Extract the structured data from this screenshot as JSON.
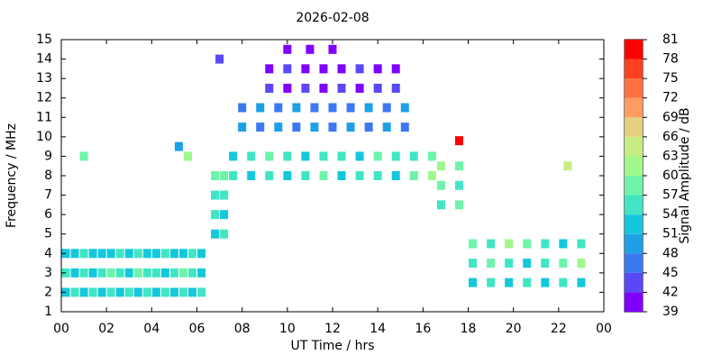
{
  "chart_data": {
    "type": "scatter",
    "title": "2026-02-08",
    "x_label": "UT Time / hrs",
    "y_label": "Frequency / MHz",
    "colorbar_label": "Signal Amplitude / dB",
    "xlim": [
      0,
      24
    ],
    "xticks": [
      {
        "value": 0,
        "label": "00"
      },
      {
        "value": 2,
        "label": "02"
      },
      {
        "value": 4,
        "label": "04"
      },
      {
        "value": 6,
        "label": "06"
      },
      {
        "value": 8,
        "label": "08"
      },
      10,
      12,
      14,
      16,
      18,
      20,
      22,
      {
        "value": 24,
        "label": "00"
      }
    ],
    "ylim": [
      1,
      15
    ],
    "yticks": [
      1,
      2,
      3,
      4,
      5,
      6,
      7,
      8,
      9,
      10,
      11,
      12,
      13,
      14,
      15
    ],
    "grid": false,
    "colorbar_levels": [
      39,
      42,
      45,
      48,
      51,
      54,
      57,
      60,
      63,
      66,
      69,
      72,
      75,
      78,
      81
    ],
    "colorbar_colors": [
      "#8000ff",
      "#5a48f8",
      "#3c78f0",
      "#1ea0e6",
      "#14c8dc",
      "#40e6c4",
      "#6ef4aa",
      "#a0f88c",
      "#c8ec84",
      "#e6d080",
      "#ff9c60",
      "#ff7040",
      "#ff4020",
      "#ff0000"
    ],
    "x": [
      0.2,
      0.2,
      0.2,
      0.6,
      0.6,
      0.6,
      1.0,
      1.0,
      1.0,
      1.4,
      1.4,
      1.4,
      1.8,
      1.8,
      1.8,
      2.2,
      2.2,
      2.2,
      2.6,
      2.6,
      2.6,
      3.0,
      3.0,
      3.0,
      3.4,
      3.4,
      3.4,
      3.8,
      3.8,
      3.8,
      4.2,
      4.2,
      4.2,
      4.6,
      4.6,
      4.6,
      5.0,
      5.0,
      5.0,
      5.4,
      5.4,
      5.4,
      5.8,
      5.8,
      5.8,
      6.2,
      6.2,
      6.2,
      6.8,
      6.8,
      6.8,
      6.8,
      7.2,
      7.2,
      7.2,
      7.2,
      7.6,
      7.6,
      8.4,
      8.4,
      9.2,
      9.2,
      10.0,
      10.0,
      10.8,
      10.8,
      11.6,
      11.6,
      12.4,
      12.4,
      13.2,
      13.2,
      14.0,
      14.0,
      14.8,
      14.8,
      15.6,
      15.6,
      16.4,
      16.4,
      8.0,
      8.0,
      8.8,
      8.8,
      9.6,
      9.6,
      10.4,
      10.4,
      11.2,
      11.2,
      12.0,
      12.0,
      12.8,
      12.8,
      13.6,
      13.6,
      14.4,
      14.4,
      15.2,
      15.2,
      9.2,
      9.2,
      10.0,
      10.0,
      10.8,
      10.8,
      11.6,
      11.6,
      12.4,
      12.4,
      13.2,
      13.2,
      14.0,
      14.0,
      14.8,
      14.8,
      10.0,
      11.0,
      12.0,
      16.8,
      16.8,
      16.8,
      17.6,
      17.6,
      17.6,
      18.2,
      18.2,
      18.2,
      19.0,
      19.0,
      19.0,
      19.8,
      19.8,
      19.8,
      20.6,
      20.6,
      20.6,
      21.4,
      21.4,
      21.4,
      22.2,
      22.2,
      22.2,
      23.0,
      23.0,
      23.0,
      5.6,
      5.2,
      7.0,
      22.4,
      1.0,
      17.6
    ],
    "values": [
      2,
      3,
      4,
      2,
      3,
      4,
      2,
      3,
      4,
      2,
      3,
      4,
      2,
      3,
      4,
      2,
      3,
      4,
      2,
      3,
      4,
      2,
      3,
      4,
      2,
      3,
      4,
      2,
      3,
      4,
      2,
      3,
      4,
      2,
      3,
      4,
      2,
      3,
      4,
      2,
      3,
      4,
      2,
      3,
      4,
      2,
      3,
      4,
      5,
      6,
      7,
      8,
      5,
      6,
      7,
      8,
      8,
      9,
      8,
      9,
      8,
      9,
      8,
      9,
      8,
      9,
      8,
      9,
      8,
      9,
      8,
      9,
      8,
      9,
      8,
      9,
      8,
      9,
      8,
      9,
      10.5,
      11.5,
      10.5,
      11.5,
      10.5,
      11.5,
      10.5,
      11.5,
      10.5,
      11.5,
      10.5,
      11.5,
      10.5,
      11.5,
      10.5,
      11.5,
      10.5,
      11.5,
      10.5,
      11.5,
      12.5,
      13.5,
      12.5,
      13.5,
      12.5,
      13.5,
      12.5,
      13.5,
      12.5,
      13.5,
      12.5,
      13.5,
      12.5,
      13.5,
      12.5,
      13.5,
      14.5,
      14.5,
      14.5,
      6.5,
      7.5,
      8.5,
      6.5,
      7.5,
      8.5,
      2.5,
      3.5,
      4.5,
      2.5,
      3.5,
      4.5,
      2.5,
      3.5,
      4.5,
      2.5,
      3.5,
      4.5,
      2.5,
      3.5,
      4.5,
      2.5,
      3.5,
      4.5,
      2.5,
      3.5,
      4.5,
      9,
      9.5,
      14,
      8.5,
      9,
      9.8
    ],
    "amplitude": [
      51,
      54,
      51,
      54,
      51,
      51,
      51,
      54,
      54,
      54,
      51,
      51,
      51,
      54,
      51,
      54,
      57,
      51,
      51,
      54,
      54,
      54,
      51,
      51,
      51,
      57,
      54,
      54,
      54,
      51,
      51,
      54,
      51,
      54,
      51,
      54,
      51,
      54,
      51,
      54,
      57,
      51,
      51,
      54,
      54,
      54,
      51,
      51,
      51,
      54,
      54,
      57,
      54,
      51,
      54,
      57,
      54,
      51,
      51,
      54,
      54,
      57,
      51,
      54,
      54,
      51,
      57,
      54,
      51,
      54,
      54,
      51,
      54,
      57,
      51,
      54,
      57,
      54,
      60,
      57,
      48,
      45,
      45,
      48,
      48,
      45,
      45,
      48,
      48,
      45,
      45,
      45,
      48,
      45,
      45,
      48,
      48,
      45,
      45,
      48,
      42,
      39,
      39,
      42,
      42,
      39,
      39,
      39,
      42,
      39,
      39,
      42,
      42,
      39,
      42,
      39,
      39,
      39,
      39,
      54,
      57,
      60,
      57,
      54,
      57,
      51,
      54,
      57,
      54,
      57,
      54,
      51,
      54,
      60,
      54,
      51,
      57,
      51,
      54,
      54,
      54,
      57,
      51,
      51,
      60,
      54,
      60,
      48,
      42,
      63,
      57,
      78
    ]
  }
}
